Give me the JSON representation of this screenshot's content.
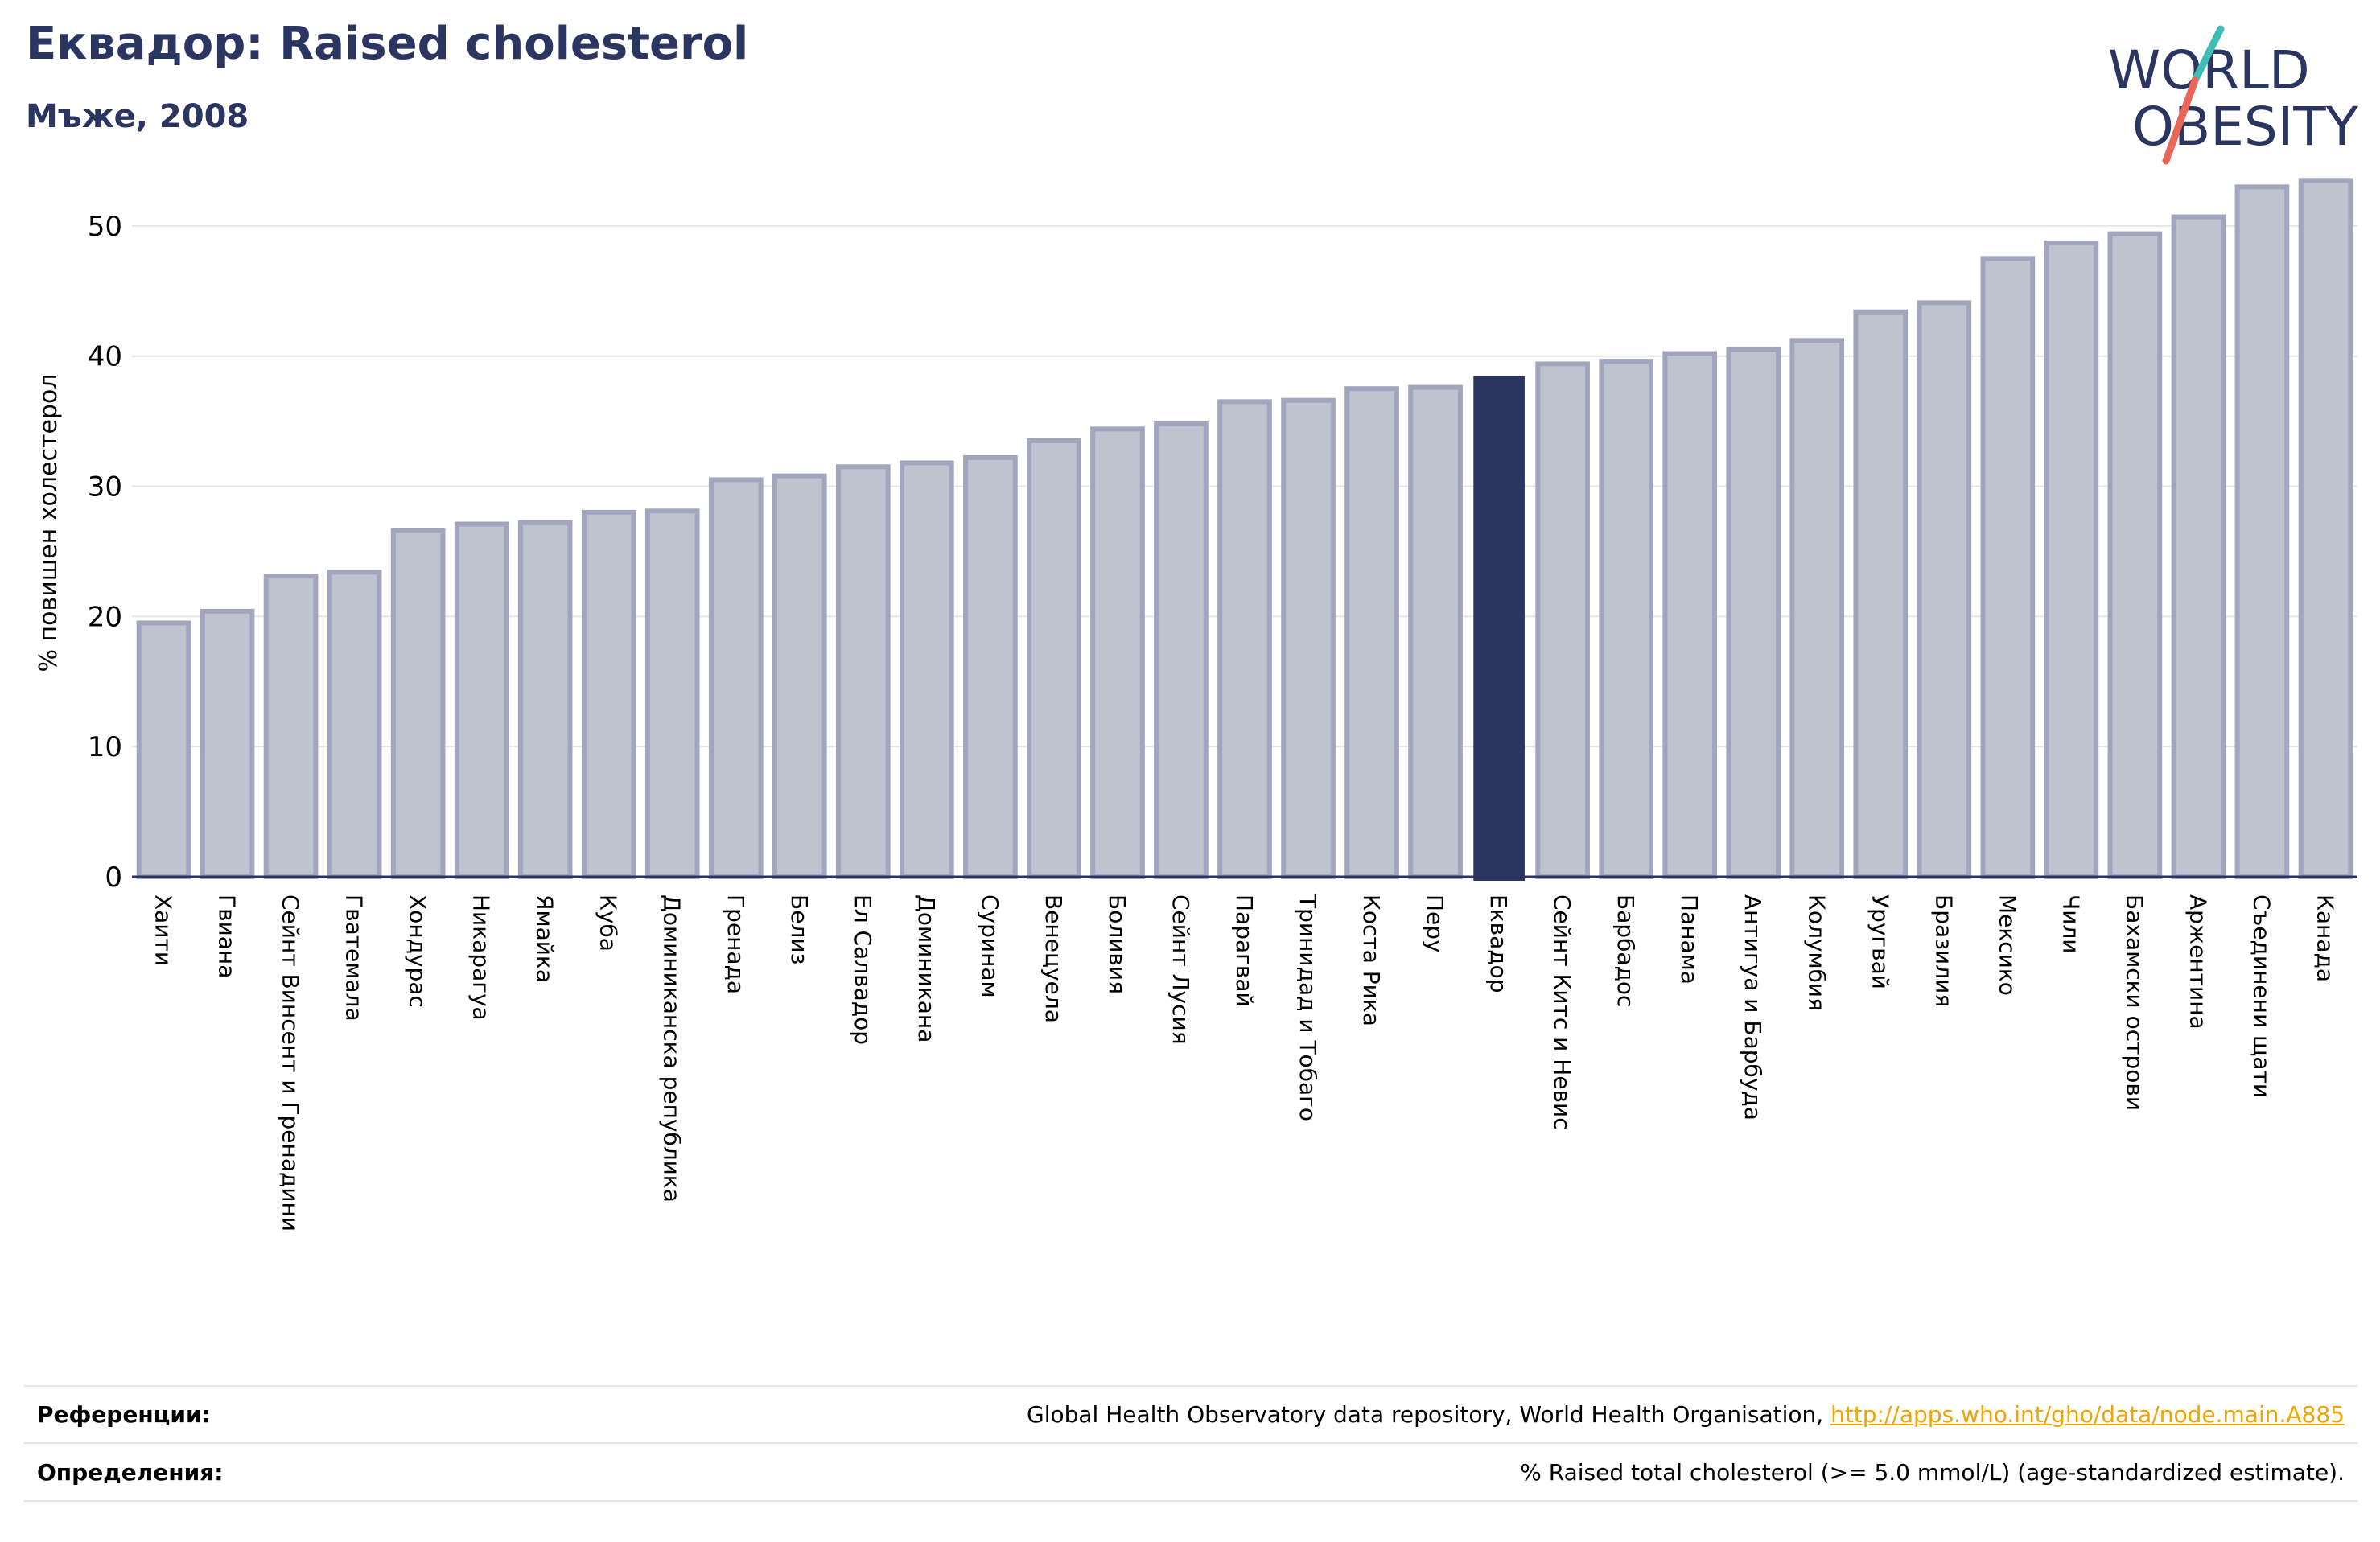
{
  "header": {
    "title": "Еквадор: Raised cholesterol",
    "subtitle": "Мъже, 2008"
  },
  "logo": {
    "line1": "WORLD",
    "line2": "OBESITY"
  },
  "chart_data": {
    "type": "bar",
    "ylabel": "% повишен холестерол",
    "ylim": [
      0,
      55
    ],
    "yticks": [
      0,
      10,
      20,
      30,
      40,
      50
    ],
    "grid": true,
    "highlight": "Еквадор",
    "colors": {
      "bar": "#bfc2cf",
      "bar_edge": "#a1a5bd",
      "highlight": "#2a3560",
      "grid": "#e6e6e6",
      "axis": "#2a3560"
    },
    "categories": [
      "Хаити",
      "Гвиана",
      "Сейнт Винсент и Гренадини",
      "Гватемала",
      "Хондурас",
      "Никарагуа",
      "Ямайка",
      "Куба",
      "Доминиканска република",
      "Гренада",
      "Белиз",
      "Ел Салвадор",
      "Доминикана",
      "Суринам",
      "Венецуела",
      "Боливия",
      "Сейнт Лусия",
      "Парагвай",
      "Тринидад и Тобаго",
      "Коста Рика",
      "Перу",
      "Еквадор",
      "Сейнт Китс и Невис",
      "Барбадос",
      "Панама",
      "Антигуа и Барбуда",
      "Колумбия",
      "Уругвай",
      "Бразилия",
      "Мексико",
      "Чили",
      "Бахамски острови",
      "Аржентина",
      "Съединени щати",
      "Канада"
    ],
    "values": [
      19.5,
      20.4,
      23.1,
      23.4,
      26.6,
      27.1,
      27.2,
      28.0,
      28.1,
      30.5,
      30.8,
      31.5,
      31.8,
      32.2,
      33.5,
      34.4,
      34.8,
      36.5,
      36.6,
      37.5,
      37.6,
      38.4,
      39.4,
      39.6,
      40.2,
      40.5,
      41.2,
      43.4,
      44.1,
      47.5,
      48.7,
      49.4,
      50.7,
      53.0,
      53.5
    ]
  },
  "references": {
    "label": "Референции:",
    "text": "Global Health Observatory data repository, World Health Organisation, ",
    "link": "http://apps.who.int/gho/data/node.main.A885"
  },
  "definitions": {
    "label": "Определения:",
    "text": "% Raised total cholesterol (>= 5.0 mmol/L) (age-standardized estimate)."
  }
}
